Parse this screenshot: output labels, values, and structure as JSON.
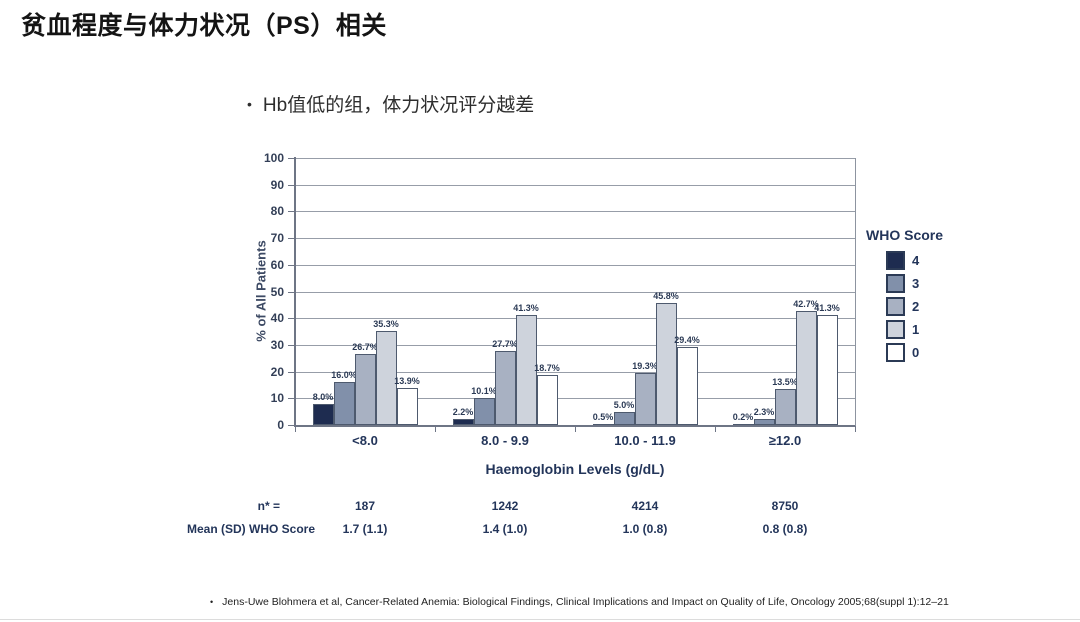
{
  "slide": {
    "title": "贫血程度与体力状况（PS）相关",
    "bullet": "Hb值低的组，体力状况评分越差",
    "footnote": "Jens-Uwe Blohmera et al, Cancer-Related Anemia: Biological Findings, Clinical Implications and Impact on Quality of Life, Oncology 2005;68(suppl 1):12–21"
  },
  "chart_data": {
    "type": "bar",
    "title": "",
    "categories": [
      "<8.0",
      "8.0 - 9.9",
      "10.0 - 11.9",
      "≥12.0"
    ],
    "series": [
      {
        "name": "4",
        "color": "#1e2c50",
        "values": [
          8.0,
          2.2,
          0.5,
          0.2
        ]
      },
      {
        "name": "3",
        "color": "#8190aa",
        "values": [
          16.0,
          10.1,
          5.0,
          2.3
        ]
      },
      {
        "name": "2",
        "color": "#a8b1c2",
        "values": [
          26.7,
          27.7,
          19.3,
          13.5
        ]
      },
      {
        "name": "1",
        "color": "#ced3dc",
        "values": [
          35.3,
          41.3,
          45.8,
          42.7
        ]
      },
      {
        "name": "0",
        "color": "#ffffff",
        "values": [
          13.9,
          18.7,
          29.4,
          41.3
        ]
      }
    ],
    "value_label_suffix": "%",
    "xlabel": "Haemoglobin Levels (g/dL)",
    "ylabel": "% of All Patients",
    "ylim": [
      0,
      100
    ],
    "ytick_step": 10,
    "grid": true,
    "legend_title": "WHO Score",
    "legend_position": "right"
  },
  "stats_table": {
    "rows": [
      {
        "label": "n* =",
        "values": [
          "187",
          "1242",
          "4214",
          "8750"
        ]
      },
      {
        "label": "Mean (SD) WHO Score",
        "values": [
          "1.7 (1.1)",
          "1.4 (1.0)",
          "1.0 (0.8)",
          "0.8 (0.8)"
        ]
      }
    ]
  }
}
